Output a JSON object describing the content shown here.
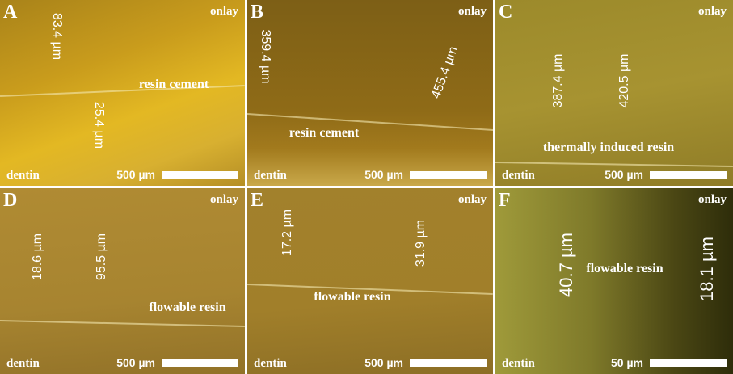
{
  "panels": [
    {
      "letter": "A",
      "top_label": "onlay",
      "bottom_label": "dentin",
      "scale": "500 µm",
      "material": "resin cement",
      "measurements": [
        "83.4 µm",
        "25.4 µm"
      ]
    },
    {
      "letter": "B",
      "top_label": "onlay",
      "bottom_label": "dentin",
      "scale": "500 µm",
      "material": "resin cement",
      "measurements": [
        "359.4 µm",
        "455.4 µm"
      ]
    },
    {
      "letter": "C",
      "top_label": "onlay",
      "bottom_label": "dentin",
      "scale": "500 µm",
      "material": "thermally induced resin",
      "measurements": [
        "387.4 µm",
        "420.5 µm"
      ]
    },
    {
      "letter": "D",
      "top_label": "onlay",
      "bottom_label": "dentin",
      "scale": "500 µm",
      "material": "flowable resin",
      "measurements": [
        "18.6 µm",
        "95.5 µm"
      ]
    },
    {
      "letter": "E",
      "top_label": "onlay",
      "bottom_label": "dentin",
      "scale": "500 µm",
      "material": "flowable resin",
      "measurements": [
        "17.2 µm",
        "31.9 µm"
      ]
    },
    {
      "letter": "F",
      "top_label": "onlay",
      "bottom_label": "dentin",
      "scale": "50 µm",
      "material": "flowable resin",
      "measurements": [
        "40.7 µm",
        "18.1 µm"
      ]
    }
  ]
}
